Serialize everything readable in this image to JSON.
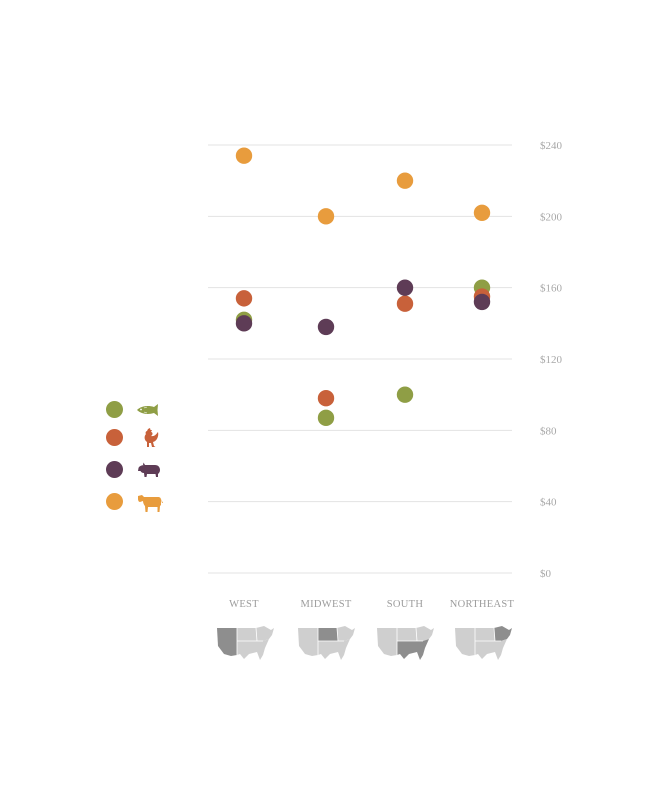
{
  "chart_data": {
    "type": "scatter",
    "title": "",
    "xlabel": "",
    "ylabel": "",
    "categories": [
      "WEST",
      "MIDWEST",
      "SOUTH",
      "NORTHEAST"
    ],
    "ylim": [
      0,
      240
    ],
    "yticks": [
      0,
      40,
      80,
      120,
      160,
      200,
      240
    ],
    "ytick_labels": [
      "$0",
      "$40",
      "$80",
      "$120",
      "$160",
      "$200",
      "$240"
    ],
    "grid": true,
    "legend_position": "left",
    "series": [
      {
        "icon": "fish-icon",
        "color": "#8f9e45",
        "values": [
          142,
          87,
          100,
          160
        ]
      },
      {
        "icon": "chicken-icon",
        "color": "#c8613a",
        "values": [
          154,
          98,
          151,
          155
        ]
      },
      {
        "icon": "pig-icon",
        "color": "#5e3c56",
        "values": [
          140,
          138,
          160,
          152
        ]
      },
      {
        "icon": "cow-icon",
        "color": "#e89c3d",
        "values": [
          234,
          200,
          220,
          202
        ]
      }
    ]
  },
  "legend": {
    "items": [
      {
        "icon": "fish-icon",
        "color": "#8f9e45"
      },
      {
        "icon": "chicken-icon",
        "color": "#c8613a"
      },
      {
        "icon": "pig-icon",
        "color": "#5e3c56"
      },
      {
        "icon": "cow-icon",
        "color": "#e89c3d"
      }
    ]
  },
  "region_maps": [
    {
      "region": "WEST",
      "icon": "us-map-west-highlight-icon"
    },
    {
      "region": "MIDWEST",
      "icon": "us-map-midwest-highlight-icon"
    },
    {
      "region": "SOUTH",
      "icon": "us-map-south-highlight-icon"
    },
    {
      "region": "NORTHEAST",
      "icon": "us-map-northeast-highlight-icon"
    }
  ]
}
